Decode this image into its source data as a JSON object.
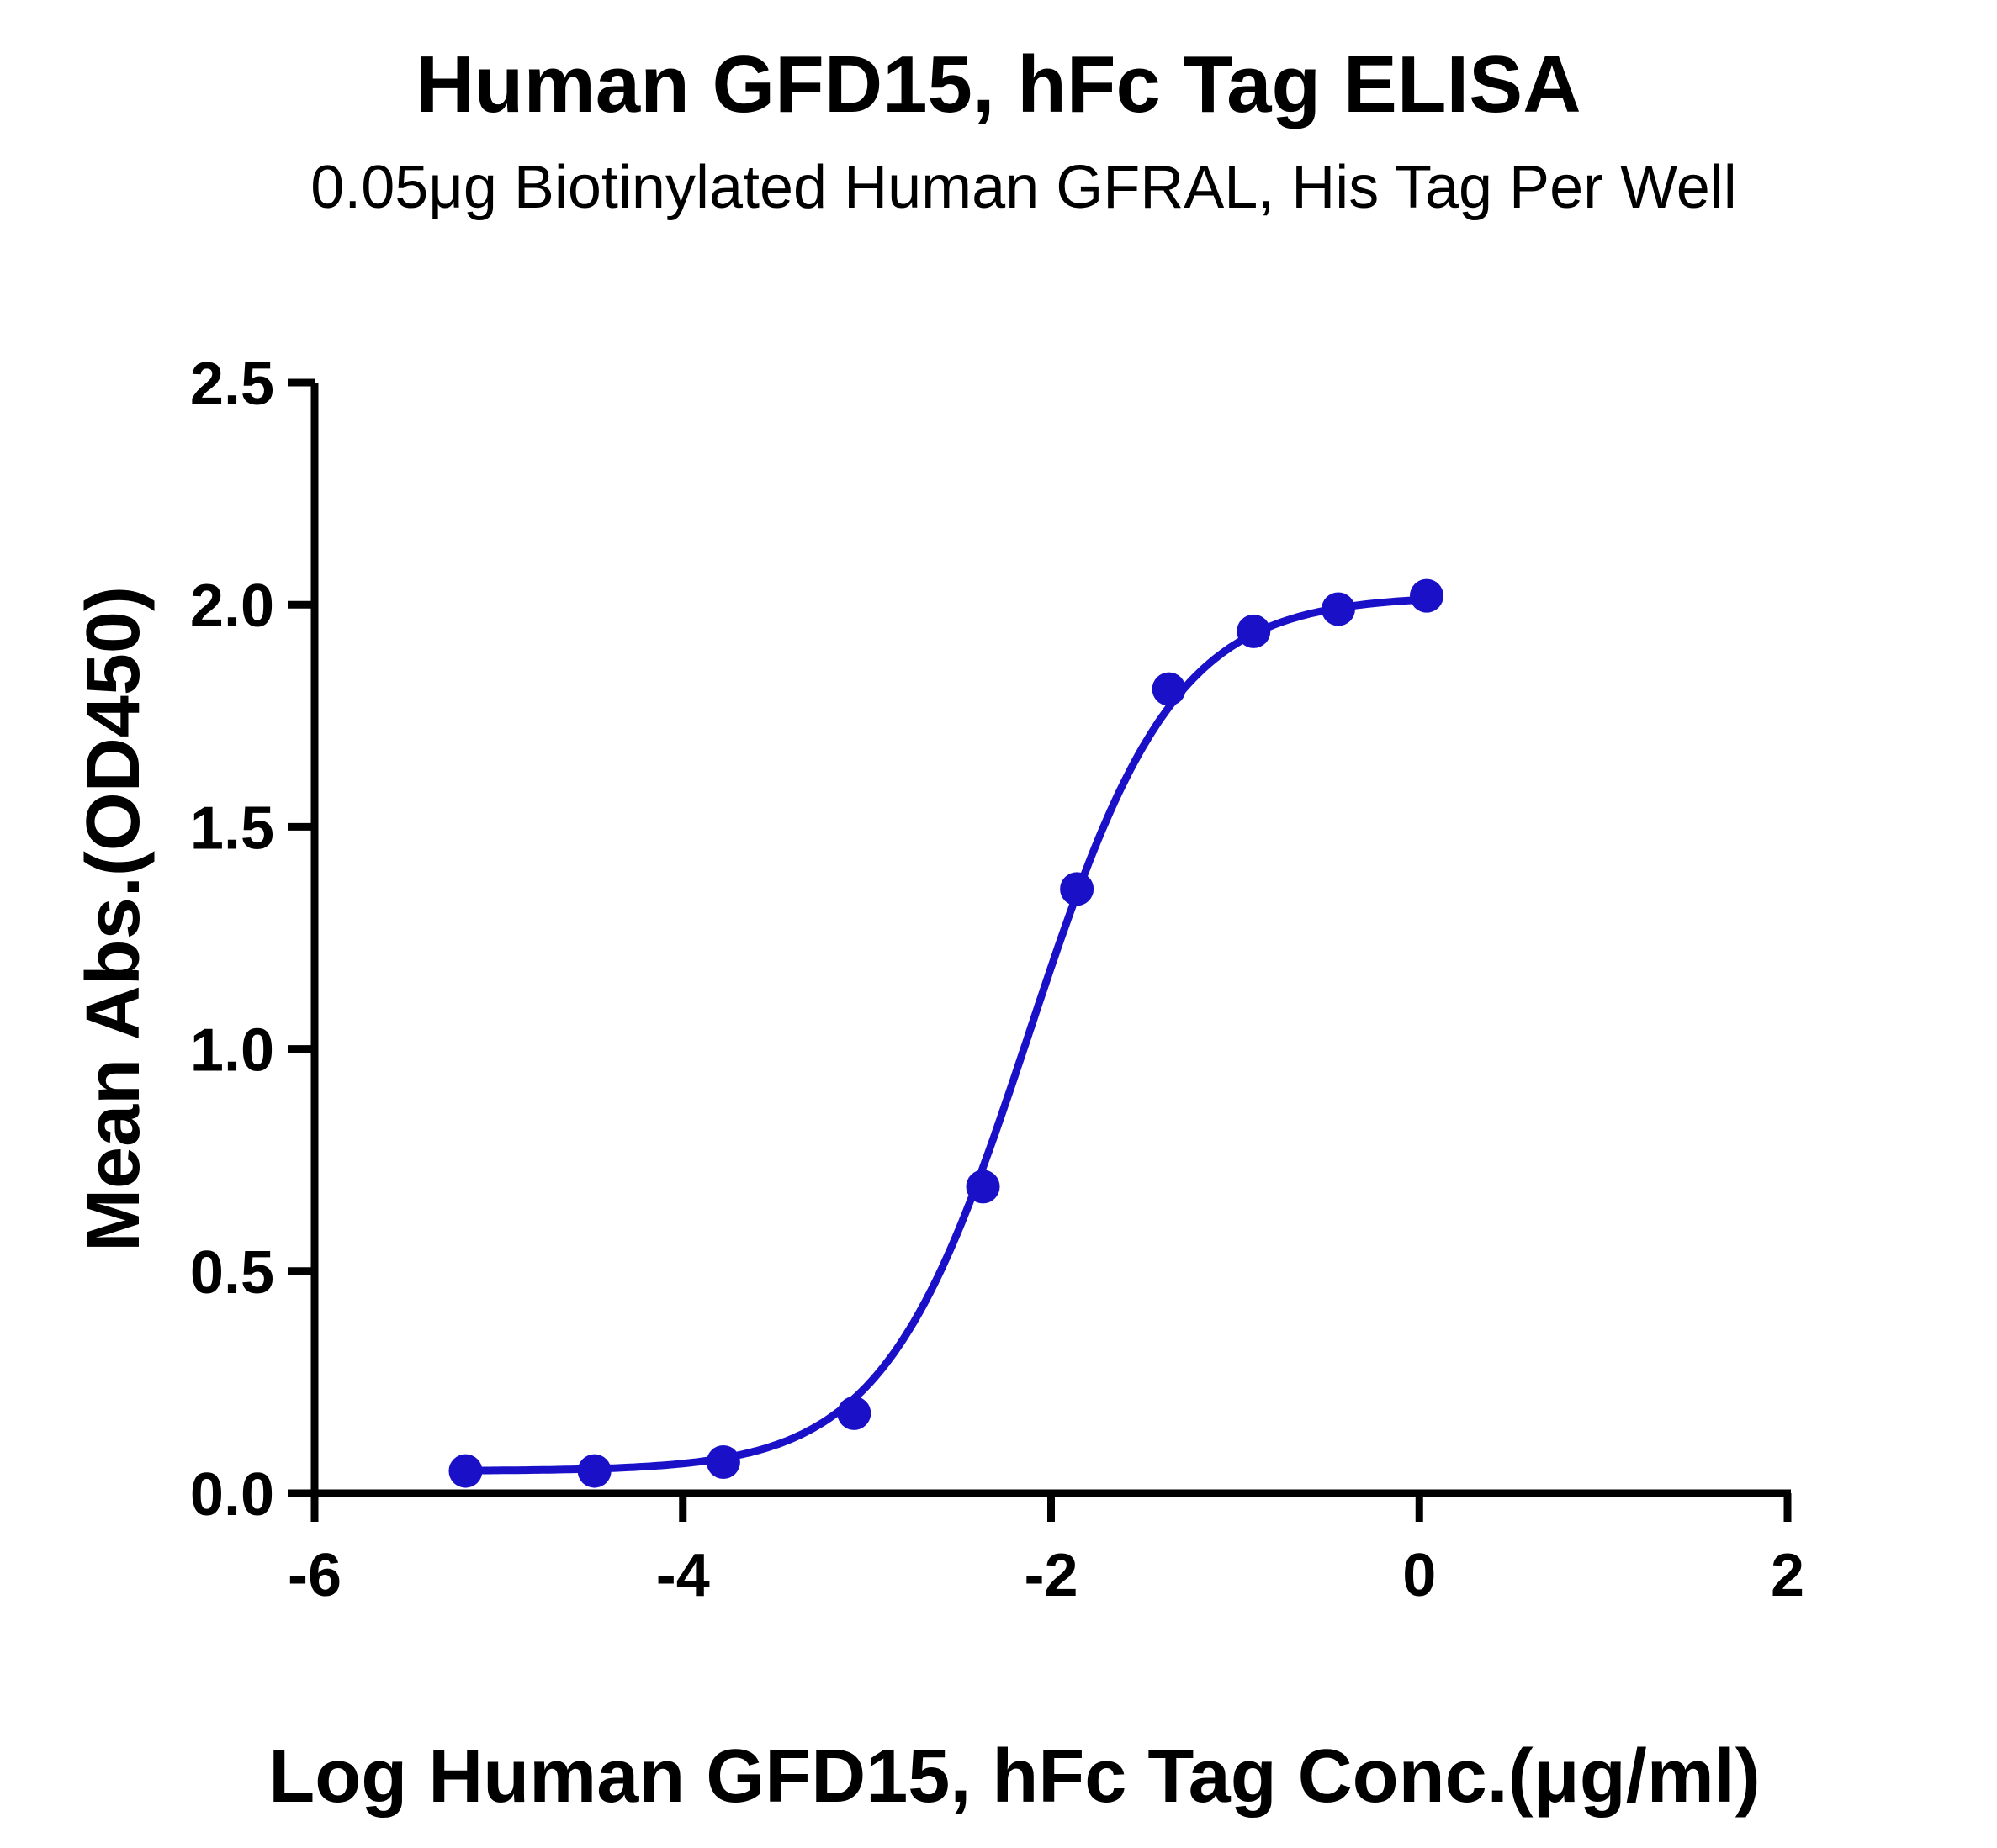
{
  "chart_data": {
    "type": "scatter",
    "title": "Human GFD15, hFc Tag ELISA",
    "subtitle": "0.05μg Biotinylated Human GFRAL, His Tag Per Well",
    "xlabel": "Log Human GFD15, hFc Tag Conc.(μg/ml)",
    "ylabel": "Mean Abs.(OD450)",
    "xlim": [
      -6,
      2
    ],
    "ylim": [
      0,
      2.5
    ],
    "xticks": [
      "-6",
      "-4",
      "-2",
      "0",
      "2"
    ],
    "yticks": [
      "0.0",
      "0.5",
      "1.0",
      "1.5",
      "2.0",
      "2.5"
    ],
    "grid": false,
    "legend": false,
    "color": "#1a10c8",
    "series": [
      {
        "x": [
          -5.18,
          -4.48,
          -3.78,
          -3.07,
          -2.37,
          -1.86,
          -1.36,
          -0.9,
          -0.44,
          0.04
        ],
        "y": [
          0.05,
          0.05,
          0.07,
          0.18,
          0.69,
          1.36,
          1.81,
          1.94,
          1.99,
          2.02
        ]
      }
    ],
    "fit": {
      "model": "4PL",
      "bottom": 0.05,
      "top": 2.02,
      "logEC50": -2.12,
      "hill": 1.1
    }
  }
}
